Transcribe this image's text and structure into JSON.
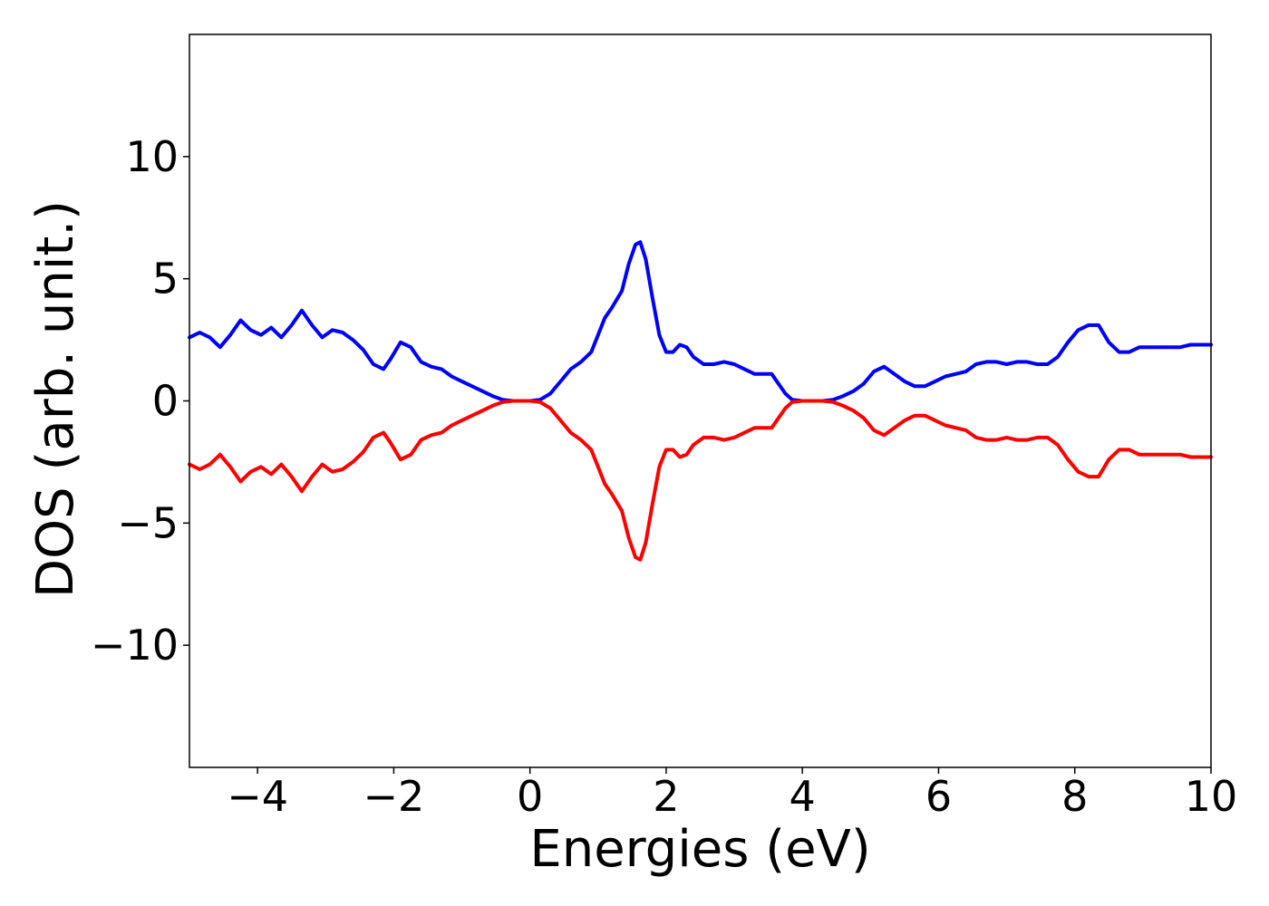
{
  "chart_data": {
    "type": "line",
    "title": "",
    "xlabel": "Energies (eV)",
    "ylabel": "DOS (arb. unit.)",
    "xlim": [
      -5,
      10
    ],
    "ylim": [
      -15,
      15
    ],
    "x_ticks": [
      -4,
      -2,
      0,
      2,
      4,
      6,
      8,
      10
    ],
    "x_tick_labels": [
      "−4",
      "−2",
      "0",
      "2",
      "4",
      "6",
      "8",
      "10"
    ],
    "y_ticks": [
      -10,
      -5,
      0,
      5,
      10
    ],
    "y_tick_labels": [
      "−10",
      "−5",
      "0",
      "5",
      "10"
    ],
    "grid": false,
    "legend": "none",
    "series": [
      {
        "color": "#0000ff",
        "x": [
          -5.0,
          -4.85,
          -4.7,
          -4.55,
          -4.4,
          -4.25,
          -4.1,
          -3.95,
          -3.8,
          -3.65,
          -3.5,
          -3.35,
          -3.2,
          -3.05,
          -2.9,
          -2.75,
          -2.6,
          -2.45,
          -2.3,
          -2.15,
          -2.05,
          -1.9,
          -1.75,
          -1.6,
          -1.45,
          -1.3,
          -1.15,
          -1.0,
          -0.85,
          -0.7,
          -0.55,
          -0.4,
          -0.25,
          -0.1,
          0.0,
          0.15,
          0.3,
          0.45,
          0.6,
          0.75,
          0.9,
          1.0,
          1.1,
          1.2,
          1.35,
          1.45,
          1.55,
          1.62,
          1.7,
          1.8,
          1.9,
          2.0,
          2.1,
          2.2,
          2.3,
          2.4,
          2.55,
          2.7,
          2.85,
          3.0,
          3.15,
          3.3,
          3.45,
          3.55,
          3.65,
          3.75,
          3.85,
          4.0,
          4.15,
          4.3,
          4.45,
          4.6,
          4.75,
          4.9,
          5.05,
          5.2,
          5.35,
          5.5,
          5.65,
          5.8,
          5.95,
          6.1,
          6.25,
          6.4,
          6.55,
          6.7,
          6.85,
          7.0,
          7.15,
          7.3,
          7.45,
          7.6,
          7.75,
          7.9,
          8.05,
          8.2,
          8.35,
          8.5,
          8.65,
          8.8,
          8.95,
          9.1,
          9.25,
          9.4,
          9.55,
          9.7,
          9.85,
          10.0
        ],
        "y": [
          2.6,
          2.8,
          2.6,
          2.2,
          2.7,
          3.3,
          2.9,
          2.7,
          3.0,
          2.6,
          3.1,
          3.7,
          3.1,
          2.6,
          2.9,
          2.8,
          2.5,
          2.1,
          1.5,
          1.3,
          1.7,
          2.4,
          2.2,
          1.6,
          1.4,
          1.3,
          1.0,
          0.8,
          0.6,
          0.4,
          0.2,
          0.05,
          0.0,
          0.0,
          0.0,
          0.05,
          0.3,
          0.8,
          1.3,
          1.6,
          2.0,
          2.7,
          3.4,
          3.8,
          4.5,
          5.6,
          6.4,
          6.5,
          5.8,
          4.2,
          2.7,
          2.0,
          2.0,
          2.3,
          2.2,
          1.8,
          1.5,
          1.5,
          1.6,
          1.5,
          1.3,
          1.1,
          1.1,
          1.1,
          0.7,
          0.3,
          0.05,
          0.0,
          0.0,
          0.0,
          0.05,
          0.2,
          0.4,
          0.7,
          1.2,
          1.4,
          1.1,
          0.8,
          0.6,
          0.6,
          0.8,
          1.0,
          1.1,
          1.2,
          1.5,
          1.6,
          1.6,
          1.5,
          1.6,
          1.6,
          1.5,
          1.5,
          1.8,
          2.4,
          2.9,
          3.1,
          3.1,
          2.4,
          2.0,
          2.0,
          2.2,
          2.2,
          2.2,
          2.2,
          2.2,
          2.3,
          2.3,
          2.3
        ]
      },
      {
        "color": "#ff0000",
        "x": [
          -5.0,
          -4.85,
          -4.7,
          -4.55,
          -4.4,
          -4.25,
          -4.1,
          -3.95,
          -3.8,
          -3.65,
          -3.5,
          -3.35,
          -3.2,
          -3.05,
          -2.9,
          -2.75,
          -2.6,
          -2.45,
          -2.3,
          -2.15,
          -2.05,
          -1.9,
          -1.75,
          -1.6,
          -1.45,
          -1.3,
          -1.15,
          -1.0,
          -0.85,
          -0.7,
          -0.55,
          -0.4,
          -0.25,
          -0.1,
          0.0,
          0.15,
          0.3,
          0.45,
          0.6,
          0.75,
          0.9,
          1.0,
          1.1,
          1.2,
          1.35,
          1.45,
          1.55,
          1.62,
          1.7,
          1.8,
          1.9,
          2.0,
          2.1,
          2.2,
          2.3,
          2.4,
          2.55,
          2.7,
          2.85,
          3.0,
          3.15,
          3.3,
          3.45,
          3.55,
          3.65,
          3.75,
          3.85,
          4.0,
          4.15,
          4.3,
          4.45,
          4.6,
          4.75,
          4.9,
          5.05,
          5.2,
          5.35,
          5.5,
          5.65,
          5.8,
          5.95,
          6.1,
          6.25,
          6.4,
          6.55,
          6.7,
          6.85,
          7.0,
          7.15,
          7.3,
          7.45,
          7.6,
          7.75,
          7.9,
          8.05,
          8.2,
          8.35,
          8.5,
          8.65,
          8.8,
          8.95,
          9.1,
          9.25,
          9.4,
          9.55,
          9.7,
          9.85,
          10.0
        ],
        "y": [
          -2.6,
          -2.8,
          -2.6,
          -2.2,
          -2.7,
          -3.3,
          -2.9,
          -2.7,
          -3.0,
          -2.6,
          -3.1,
          -3.7,
          -3.1,
          -2.6,
          -2.9,
          -2.8,
          -2.5,
          -2.1,
          -1.5,
          -1.3,
          -1.7,
          -2.4,
          -2.2,
          -1.6,
          -1.4,
          -1.3,
          -1.0,
          -0.8,
          -0.6,
          -0.4,
          -0.2,
          -0.05,
          0.0,
          0.0,
          0.0,
          -0.05,
          -0.3,
          -0.8,
          -1.3,
          -1.6,
          -2.0,
          -2.7,
          -3.4,
          -3.8,
          -4.5,
          -5.6,
          -6.4,
          -6.5,
          -5.8,
          -4.2,
          -2.7,
          -2.0,
          -2.0,
          -2.3,
          -2.2,
          -1.8,
          -1.5,
          -1.5,
          -1.6,
          -1.5,
          -1.3,
          -1.1,
          -1.1,
          -1.1,
          -0.7,
          -0.3,
          -0.05,
          0.0,
          0.0,
          0.0,
          -0.05,
          -0.2,
          -0.4,
          -0.7,
          -1.2,
          -1.4,
          -1.1,
          -0.8,
          -0.6,
          -0.6,
          -0.8,
          -1.0,
          -1.1,
          -1.2,
          -1.5,
          -1.6,
          -1.6,
          -1.5,
          -1.6,
          -1.6,
          -1.5,
          -1.5,
          -1.8,
          -2.4,
          -2.9,
          -3.1,
          -3.1,
          -2.4,
          -2.0,
          -2.0,
          -2.2,
          -2.2,
          -2.2,
          -2.2,
          -2.2,
          -2.3,
          -2.3,
          -2.3
        ]
      }
    ]
  }
}
